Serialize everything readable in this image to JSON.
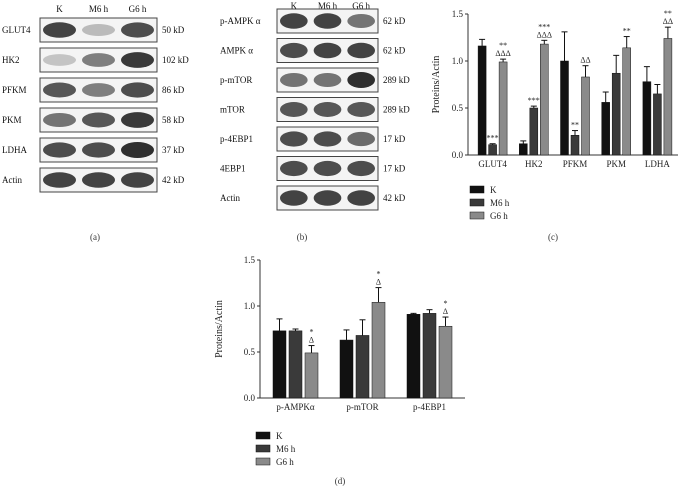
{
  "panel_a": {
    "caption": "(a)",
    "lanes": [
      "K",
      "M6 h",
      "G6 h"
    ],
    "rows": [
      {
        "protein": "GLUT4",
        "size": "50 kD",
        "intensity": [
          0.85,
          0.25,
          0.8
        ]
      },
      {
        "protein": "HK2",
        "size": "102 kD",
        "intensity": [
          0.2,
          0.55,
          0.9
        ]
      },
      {
        "protein": "PFKM",
        "size": "86 kD",
        "intensity": [
          0.75,
          0.55,
          0.8
        ]
      },
      {
        "protein": "PKM",
        "size": "58 kD",
        "intensity": [
          0.6,
          0.75,
          0.9
        ]
      },
      {
        "protein": "LDHA",
        "size": "37 kD",
        "intensity": [
          0.8,
          0.8,
          0.95
        ]
      },
      {
        "protein": "Actin",
        "size": "42 kD",
        "intensity": [
          0.85,
          0.85,
          0.85
        ]
      }
    ]
  },
  "panel_b": {
    "caption": "(b)",
    "lanes": [
      "K",
      "M6 h",
      "G6 h"
    ],
    "rows": [
      {
        "protein": "p-AMPK α",
        "size": "62 kD",
        "intensity": [
          0.85,
          0.85,
          0.6
        ]
      },
      {
        "protein": "AMPK α",
        "size": "62 kD",
        "intensity": [
          0.8,
          0.85,
          0.85
        ]
      },
      {
        "protein": "p-mTOR",
        "size": "289 kD",
        "intensity": [
          0.6,
          0.6,
          0.95
        ]
      },
      {
        "protein": "mTOR",
        "size": "289 kD",
        "intensity": [
          0.75,
          0.75,
          0.75
        ]
      },
      {
        "protein": "p-4EBP1",
        "size": "17 kD",
        "intensity": [
          0.8,
          0.8,
          0.65
        ]
      },
      {
        "protein": "4EBP1",
        "size": "17 kD",
        "intensity": [
          0.8,
          0.8,
          0.8
        ]
      },
      {
        "protein": "Actin",
        "size": "42 kD",
        "intensity": [
          0.85,
          0.85,
          0.85
        ]
      }
    ]
  },
  "chart_data": [
    {
      "id": "c",
      "type": "bar",
      "caption": "(c)",
      "ylabel": "Proteins/Actin",
      "ylim": [
        0,
        1.5
      ],
      "yticks": [
        "0.0",
        "0.5",
        "1.0",
        "1.5"
      ],
      "categories": [
        "GLUT4",
        "HK2",
        "PFKM",
        "PKM",
        "LDHA"
      ],
      "series": [
        {
          "name": "K",
          "color": "#111111",
          "values": [
            1.16,
            0.12,
            1.0,
            0.56,
            0.78
          ],
          "errors": [
            0.07,
            0.03,
            0.31,
            0.11,
            0.16
          ]
        },
        {
          "name": "M6 h",
          "color": "#3a3a3a",
          "values": [
            0.11,
            0.5,
            0.21,
            0.87,
            0.65
          ],
          "errors": [
            0.01,
            0.02,
            0.05,
            0.19,
            0.1
          ]
        },
        {
          "name": "G6 h",
          "color": "#8a8a8a",
          "values": [
            0.99,
            1.18,
            0.83,
            1.14,
            1.24
          ],
          "errors": [
            0.03,
            0.04,
            0.12,
            0.12,
            0.12
          ]
        }
      ],
      "annotations": [
        {
          "category": "GLUT4",
          "series": "M6 h",
          "text": [
            "***"
          ]
        },
        {
          "category": "GLUT4",
          "series": "G6 h",
          "text": [
            "**",
            "ΔΔΔ"
          ]
        },
        {
          "category": "HK2",
          "series": "M6 h",
          "text": [
            "***"
          ]
        },
        {
          "category": "HK2",
          "series": "G6 h",
          "text": [
            "***",
            "ΔΔΔ"
          ]
        },
        {
          "category": "PFKM",
          "series": "M6 h",
          "text": [
            "**"
          ]
        },
        {
          "category": "PFKM",
          "series": "G6 h",
          "text": [
            "ΔΔ"
          ]
        },
        {
          "category": "PKM",
          "series": "G6 h",
          "text": [
            "**"
          ]
        },
        {
          "category": "LDHA",
          "series": "G6 h",
          "text": [
            "**",
            "ΔΔ"
          ]
        }
      ],
      "legend": [
        "K",
        "M6 h",
        "G6 h"
      ]
    },
    {
      "id": "d",
      "type": "bar",
      "caption": "(d)",
      "ylabel": "Proteins/Actin",
      "ylim": [
        0,
        1.5
      ],
      "yticks": [
        "0.0",
        "0.5",
        "1.0",
        "1.5"
      ],
      "categories": [
        "p-AMPKα",
        "p-mTOR",
        "p-4EBP1"
      ],
      "series": [
        {
          "name": "K",
          "color": "#111111",
          "values": [
            0.73,
            0.63,
            0.91
          ],
          "errors": [
            0.13,
            0.11,
            0.01
          ]
        },
        {
          "name": "M6 h",
          "color": "#3a3a3a",
          "values": [
            0.73,
            0.68,
            0.92
          ],
          "errors": [
            0.02,
            0.17,
            0.04
          ]
        },
        {
          "name": "G6 h",
          "color": "#8a8a8a",
          "values": [
            0.49,
            1.04,
            0.78
          ],
          "errors": [
            0.08,
            0.16,
            0.1
          ]
        }
      ],
      "annotations": [
        {
          "category": "p-AMPKα",
          "series": "G6 h",
          "text": [
            "*",
            "Δ"
          ]
        },
        {
          "category": "p-mTOR",
          "series": "G6 h",
          "text": [
            "*",
            "Δ"
          ]
        },
        {
          "category": "p-4EBP1",
          "series": "G6 h",
          "text": [
            "*",
            "Δ"
          ]
        }
      ],
      "legend": [
        "K",
        "M6 h",
        "G6 h"
      ]
    }
  ]
}
